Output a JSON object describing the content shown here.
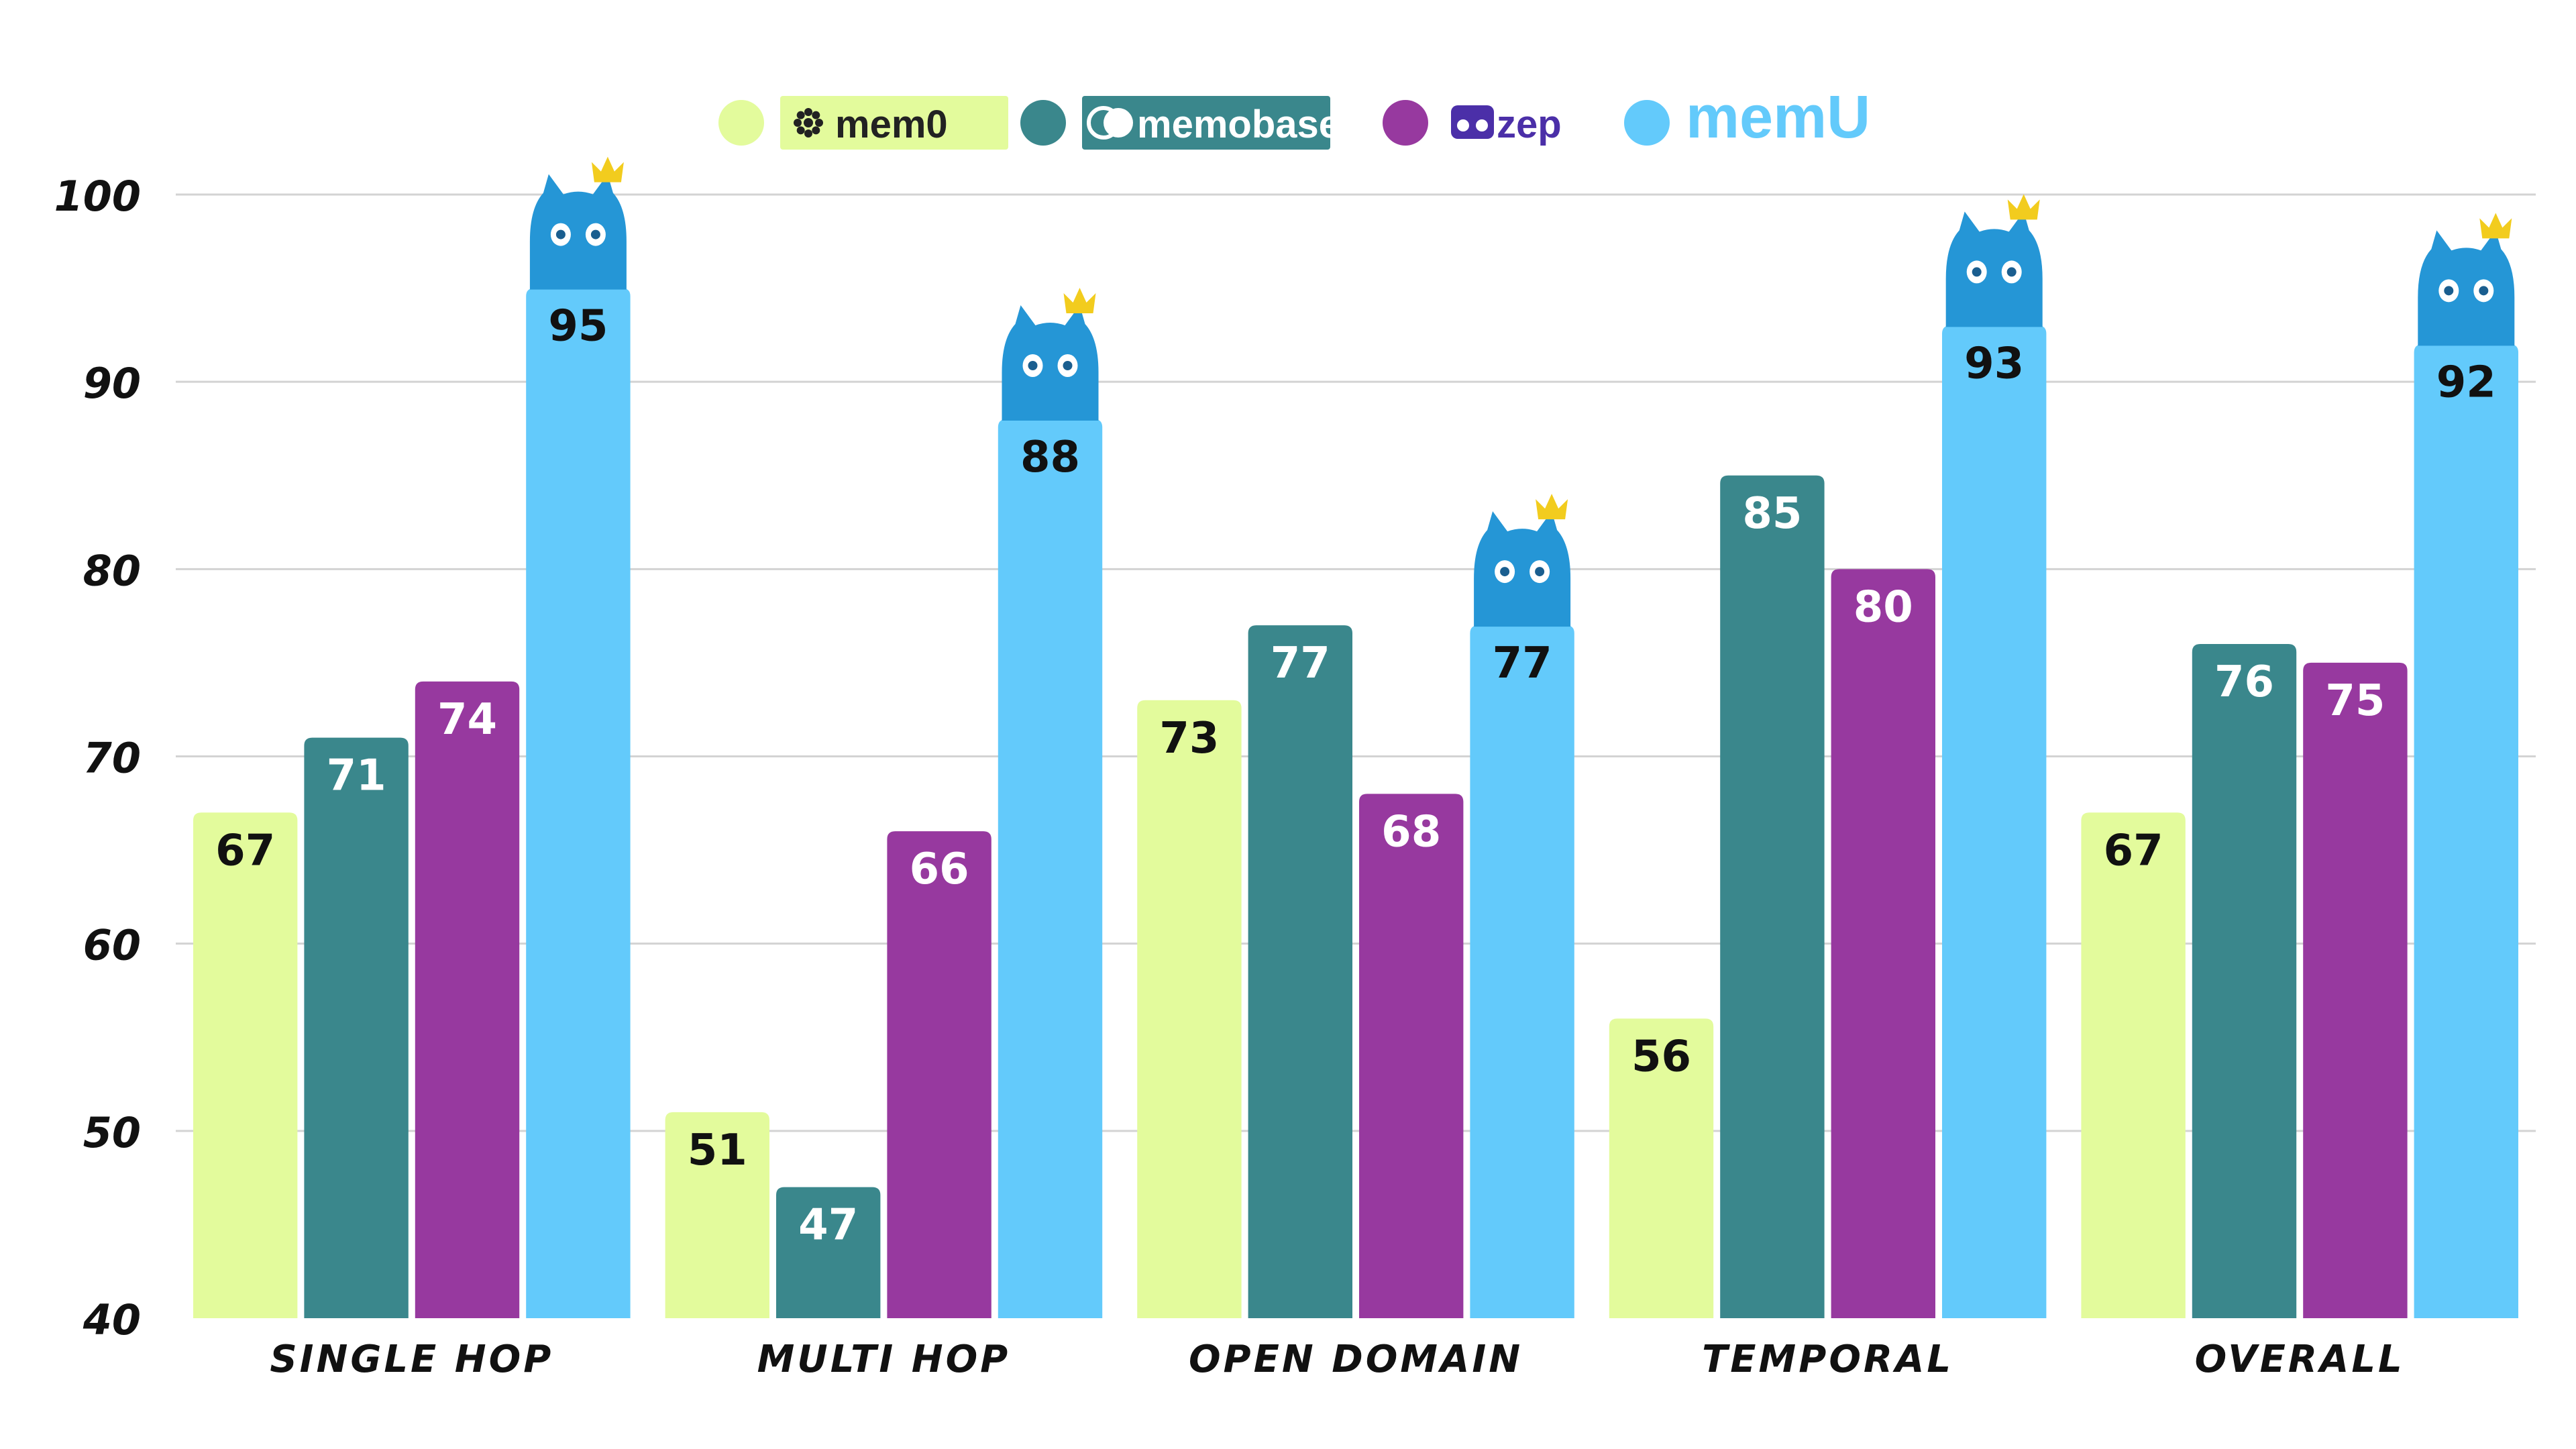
{
  "chart_data": {
    "type": "bar",
    "categories": [
      "SINGLE HOP",
      "MULTI HOP",
      "OPEN DOMAIN",
      "TEMPORAL",
      "OVERALL"
    ],
    "series": [
      {
        "name": "mem0",
        "color": "#E3FB9C",
        "label_color": "#111111",
        "values": [
          67,
          51,
          73,
          56,
          67
        ]
      },
      {
        "name": "memobase",
        "color": "#3A878C",
        "label_color": "#FFFFFF",
        "values": [
          71,
          47,
          77,
          85,
          76
        ]
      },
      {
        "name": "zep",
        "color": "#97399F",
        "label_color": "#FFFFFF",
        "values": [
          74,
          66,
          68,
          80,
          75
        ]
      },
      {
        "name": "memU",
        "color": "#63CAFB",
        "label_color": "#111111",
        "values": [
          95,
          88,
          77,
          93,
          92
        ]
      }
    ],
    "yticks": [
      40,
      50,
      60,
      70,
      80,
      90,
      100
    ],
    "ylim": [
      40,
      100
    ],
    "grid": true,
    "legend": "top-center",
    "mascot": {
      "icon": "crowned-cat-icon",
      "series": "memU",
      "cat_color": "#2596D6",
      "crown_color": "#F2CC1E"
    }
  }
}
